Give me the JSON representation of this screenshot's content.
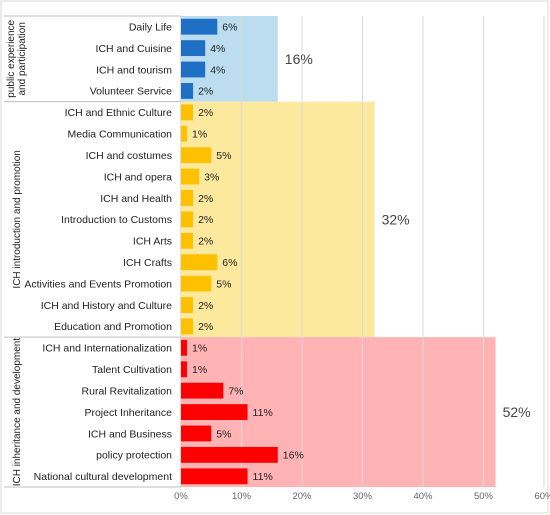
{
  "chart_data": {
    "type": "bar",
    "orientation": "horizontal",
    "xlim": [
      0,
      60
    ],
    "x_ticks": [
      "0%",
      "10%",
      "20%",
      "30%",
      "40%",
      "50%",
      "60%"
    ],
    "grid": "vertical",
    "legend": "none",
    "groups": [
      {
        "name": "public experience and participation",
        "name_lines": [
          "public experience",
          "and participation"
        ],
        "total": 16,
        "total_label": "16%",
        "band_color": "#bcdcef",
        "bar_color": "#1f6fc5",
        "items": [
          {
            "label": "Daily Life",
            "value": 6,
            "value_label": "6%"
          },
          {
            "label": "ICH and Cuisine",
            "value": 4,
            "value_label": "4%"
          },
          {
            "label": "ICH and tourism",
            "value": 4,
            "value_label": "4%"
          },
          {
            "label": "Volunteer Service",
            "value": 2,
            "value_label": "2%"
          }
        ]
      },
      {
        "name": "ICH introduction and promotion",
        "name_lines": [
          "ICH introduction and promotion"
        ],
        "total": 32,
        "total_label": "32%",
        "band_color": "#fde99d",
        "bar_color": "#ffc000",
        "items": [
          {
            "label": "ICH and Ethnic Culture",
            "value": 2,
            "value_label": "2%"
          },
          {
            "label": "Media Communication",
            "value": 1,
            "value_label": "1%"
          },
          {
            "label": "ICH and costumes",
            "value": 5,
            "value_label": "5%"
          },
          {
            "label": "ICH and opera",
            "value": 3,
            "value_label": "3%"
          },
          {
            "label": "ICH and Health",
            "value": 2,
            "value_label": "2%"
          },
          {
            "label": "Introduction to Customs",
            "value": 2,
            "value_label": "2%"
          },
          {
            "label": "ICH Arts",
            "value": 2,
            "value_label": "2%"
          },
          {
            "label": "ICH Crafts",
            "value": 6,
            "value_label": "6%"
          },
          {
            "label": "Activities and Events Promotion",
            "value": 5,
            "value_label": "5%"
          },
          {
            "label": "ICH and History and Culture",
            "value": 2,
            "value_label": "2%"
          },
          {
            "label": "Education and Promotion",
            "value": 2,
            "value_label": "2%"
          }
        ]
      },
      {
        "name": "ICH inheritance and development",
        "name_lines": [
          "ICH inheritance and development"
        ],
        "total": 52,
        "total_label": "52%",
        "band_color": "#ffb3b5",
        "bar_color": "#ff0000",
        "items": [
          {
            "label": "ICH and Internationalization",
            "value": 1,
            "value_label": "1%"
          },
          {
            "label": "Talent Cultivation",
            "value": 1,
            "value_label": "1%"
          },
          {
            "label": "Rural Revitalization",
            "value": 7,
            "value_label": "7%"
          },
          {
            "label": "Project Inheritance",
            "value": 11,
            "value_label": "11%"
          },
          {
            "label": "ICH and Business",
            "value": 5,
            "value_label": "5%"
          },
          {
            "label": "policy protection",
            "value": 16,
            "value_label": "16%"
          },
          {
            "label": "National cultural development",
            "value": 11,
            "value_label": "11%"
          }
        ]
      }
    ]
  }
}
